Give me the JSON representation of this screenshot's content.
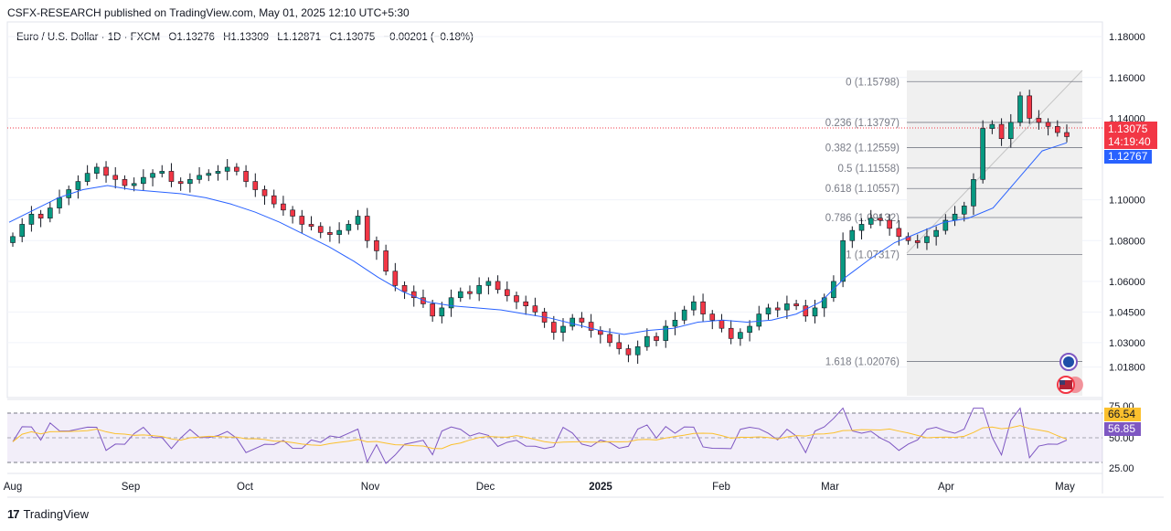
{
  "header": {
    "attribution": "CSFX-RESEARCH published on TradingView.com, May 01, 2025 12:10 UTC+5:30"
  },
  "symbol": {
    "name": "Euro / U.S. Dollar · 1D · FXCM",
    "open": "O1.13276",
    "high": "H1.13309",
    "low": "L1.12871",
    "close": "C1.13075",
    "change": "−0.00201 (−0.18%)"
  },
  "price_axis": {
    "ticks": [
      "1.18000",
      "1.16000",
      "1.14000",
      "1.10000",
      "1.08000",
      "1.06000",
      "1.04500",
      "1.03000",
      "1.01800"
    ],
    "last_price": "1.13075",
    "countdown": "14:19:40",
    "ma_value": "1.12767"
  },
  "fib_levels": [
    {
      "label": "0 (1.15798)"
    },
    {
      "label": "0.236 (1.13797)"
    },
    {
      "label": "0.382 (1.12559)"
    },
    {
      "label": "0.5 (1.11558)"
    },
    {
      "label": "0.618 (1.10557)"
    },
    {
      "label": "0.786 (1.09132)"
    },
    {
      "label": "1 (1.07317)"
    },
    {
      "label": "1.618 (1.02076)"
    }
  ],
  "rsi_axis": {
    "ticks": [
      "75.00",
      "50.00",
      "25.00"
    ],
    "rsi_value": "56.85",
    "rsi_ma_value": "66.54"
  },
  "time_axis": {
    "labels": [
      "Aug",
      "Sep",
      "Oct",
      "Nov",
      "Dec",
      "2025",
      "Feb",
      "Mar",
      "Apr",
      "May"
    ]
  },
  "brand": {
    "name": "TradingView"
  },
  "colors": {
    "up": "#089981",
    "down": "#f23645",
    "ma": "#2962ff",
    "rsi": "#7e57c2",
    "rsi_ma": "#fbc02d",
    "fib": "#787b86"
  },
  "chart_data": {
    "type": "candlestick",
    "ylim": [
      1.012,
      1.185
    ],
    "price_series": [
      1.082,
      1.088,
      1.093,
      1.091,
      1.096,
      1.101,
      1.105,
      1.109,
      1.113,
      1.116,
      1.112,
      1.11,
      1.107,
      1.108,
      1.111,
      1.113,
      1.114,
      1.109,
      1.108,
      1.11,
      1.112,
      1.113,
      1.114,
      1.116,
      1.114,
      1.109,
      1.105,
      1.102,
      1.098,
      1.095,
      1.092,
      1.088,
      1.087,
      1.084,
      1.083,
      1.085,
      1.088,
      1.092,
      1.08,
      1.075,
      1.065,
      1.058,
      1.055,
      1.052,
      1.049,
      1.043,
      1.047,
      1.052,
      1.055,
      1.054,
      1.058,
      1.06,
      1.056,
      1.053,
      1.05,
      1.048,
      1.045,
      1.04,
      1.035,
      1.038,
      1.042,
      1.04,
      1.036,
      1.034,
      1.03,
      1.027,
      1.024,
      1.028,
      1.033,
      1.031,
      1.038,
      1.041,
      1.046,
      1.05,
      1.044,
      1.041,
      1.037,
      1.032,
      1.035,
      1.038,
      1.044,
      1.047,
      1.046,
      1.049,
      1.048,
      1.043,
      1.047,
      1.052,
      1.06,
      1.08,
      1.085,
      1.088,
      1.091,
      1.09,
      1.086,
      1.082,
      1.08,
      1.079,
      1.082,
      1.085,
      1.09,
      1.093,
      1.097,
      1.11,
      1.135,
      1.137,
      1.13,
      1.138,
      1.151,
      1.14,
      1.138,
      1.136,
      1.133,
      1.131
    ],
    "ma_series": [
      1.089,
      1.095,
      1.101,
      1.105,
      1.107,
      1.105,
      1.104,
      1.103,
      1.101,
      1.098,
      1.094,
      1.089,
      1.083,
      1.077,
      1.07,
      1.062,
      1.055,
      1.05,
      1.048,
      1.047,
      1.046,
      1.044,
      1.042,
      1.039,
      1.036,
      1.034,
      1.036,
      1.037,
      1.04,
      1.041,
      1.04,
      1.041,
      1.044,
      1.05,
      1.062,
      1.071,
      1.079,
      1.084,
      1.089,
      1.091,
      1.096,
      1.11,
      1.124,
      1.128
    ],
    "rsi_ylim": [
      25,
      75
    ]
  }
}
